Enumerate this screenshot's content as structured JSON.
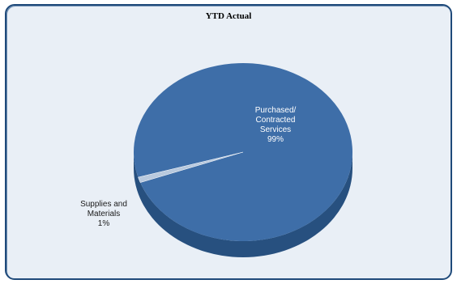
{
  "chart_data": {
    "type": "pie",
    "title": "YTD Actual",
    "slices": [
      {
        "label": "Purchased/ Contracted Services",
        "label_lines": [
          "Purchased/",
          "Contracted",
          "Services"
        ],
        "percent_label": "99%",
        "value": 99
      },
      {
        "label": "Supplies and Materials",
        "label_lines": [
          "Supplies and",
          "Materials"
        ],
        "percent_label": "1%",
        "value": 1
      }
    ],
    "colors": {
      "main": "#3e6ea8",
      "side": "#27507f",
      "minor": "#b8c9de",
      "frame_bg": "#e9eff6",
      "frame_border": "#1f4a7a"
    }
  }
}
